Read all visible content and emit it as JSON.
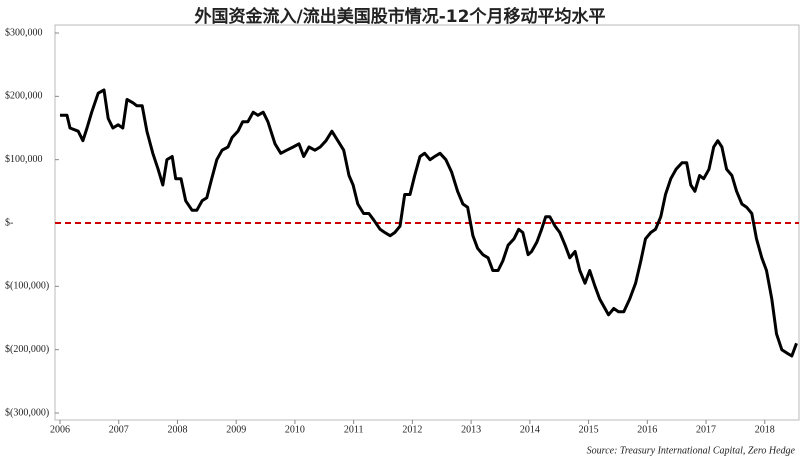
{
  "chart_data": {
    "type": "line",
    "title": "外国资金流入/流出美国股市情况-12个月移动平均水平",
    "source": "Source: Treasury International Capital, Zero Hedge",
    "xlim": [
      2006,
      2018.6
    ],
    "xticks": [
      2006,
      2007,
      2008,
      2009,
      2010,
      2011,
      2012,
      2013,
      2014,
      2015,
      2016,
      2017,
      2018
    ],
    "ylim": [
      -300000,
      300000
    ],
    "yticks": [
      {
        "value": 300000,
        "label": "$300,000"
      },
      {
        "value": 200000,
        "label": "$200,000"
      },
      {
        "value": 100000,
        "label": "$100,000"
      },
      {
        "value": 0,
        "label": "$-"
      },
      {
        "value": -100000,
        "label": "$(100,000)"
      },
      {
        "value": -200000,
        "label": "$(200,000)"
      },
      {
        "value": -300000,
        "label": "$(300,000)"
      }
    ],
    "zero_line_color": "#cc0000",
    "series": [
      {
        "color": "#000000",
        "x": [
          2006.0,
          2006.12,
          2006.17,
          2006.31,
          2006.39,
          2006.46,
          2006.54,
          2006.65,
          2006.75,
          2006.82,
          2006.9,
          2006.99,
          2007.07,
          2007.14,
          2007.24,
          2007.31,
          2007.4,
          2007.48,
          2007.58,
          2007.67,
          2007.75,
          2007.82,
          2007.91,
          2007.97,
          2008.06,
          2008.14,
          2008.25,
          2008.33,
          2008.42,
          2008.5,
          2008.57,
          2008.67,
          2008.76,
          2008.86,
          2008.93,
          2009.03,
          2009.11,
          2009.2,
          2009.29,
          2009.37,
          2009.46,
          2009.54,
          2009.66,
          2009.76,
          2009.86,
          2009.97,
          2010.07,
          2010.15,
          2010.24,
          2010.34,
          2010.43,
          2010.53,
          2010.63,
          2010.73,
          2010.83,
          2010.92,
          2010.99,
          2011.07,
          2011.17,
          2011.26,
          2011.34,
          2011.45,
          2011.53,
          2011.62,
          2011.7,
          2011.79,
          2011.87,
          2011.96,
          2012.04,
          2012.13,
          2012.21,
          2012.3,
          2012.38,
          2012.47,
          2012.57,
          2012.67,
          2012.77,
          2012.86,
          2012.94,
          2013.03,
          2013.11,
          2013.2,
          2013.29,
          2013.37,
          2013.46,
          2013.54,
          2013.63,
          2013.73,
          2013.81,
          2013.88,
          2013.97,
          2014.03,
          2014.12,
          2014.2,
          2014.27,
          2014.34,
          2014.43,
          2014.51,
          2014.6,
          2014.68,
          2014.77,
          2014.85,
          2014.94,
          2015.02,
          2015.11,
          2015.19,
          2015.28,
          2015.34,
          2015.43,
          2015.51,
          2015.6,
          2015.7,
          2015.8,
          2015.89,
          2015.97,
          2016.06,
          2016.14,
          2016.23,
          2016.31,
          2016.4,
          2016.49,
          2016.59,
          2016.67,
          2016.74,
          2016.81,
          2016.89,
          2016.96,
          2017.05,
          2017.13,
          2017.2,
          2017.27,
          2017.35,
          2017.44,
          2017.52,
          2017.61,
          2017.69,
          2017.78,
          2017.86,
          2017.95,
          2018.03,
          2018.12,
          2018.2,
          2018.29,
          2018.37,
          2018.46,
          2018.54
        ],
        "values": [
          170000,
          170000,
          150000,
          145000,
          130000,
          150000,
          175000,
          205000,
          210000,
          165000,
          150000,
          155000,
          150000,
          195000,
          190000,
          185000,
          185000,
          145000,
          110000,
          85000,
          60000,
          100000,
          105000,
          70000,
          70000,
          35000,
          20000,
          20000,
          35000,
          40000,
          65000,
          100000,
          115000,
          120000,
          135000,
          145000,
          160000,
          160000,
          175000,
          170000,
          175000,
          160000,
          125000,
          110000,
          115000,
          120000,
          125000,
          105000,
          120000,
          115000,
          120000,
          130000,
          145000,
          130000,
          115000,
          75000,
          60000,
          30000,
          15000,
          15000,
          5000,
          -10000,
          -15000,
          -20000,
          -15000,
          -5000,
          45000,
          45000,
          75000,
          105000,
          110000,
          100000,
          105000,
          110000,
          100000,
          80000,
          50000,
          30000,
          25000,
          -20000,
          -40000,
          -50000,
          -55000,
          -75000,
          -75000,
          -60000,
          -35000,
          -25000,
          -10000,
          -15000,
          -50000,
          -45000,
          -30000,
          -10000,
          10000,
          10000,
          -5000,
          -15000,
          -35000,
          -55000,
          -45000,
          -75000,
          -95000,
          -75000,
          -100000,
          -120000,
          -135000,
          -145000,
          -135000,
          -140000,
          -140000,
          -120000,
          -95000,
          -60000,
          -25000,
          -15000,
          -10000,
          10000,
          45000,
          70000,
          85000,
          95000,
          95000,
          60000,
          50000,
          75000,
          70000,
          85000,
          120000,
          130000,
          120000,
          85000,
          75000,
          50000,
          30000,
          25000,
          15000,
          -25000,
          -55000,
          -75000,
          -120000,
          -175000,
          -200000,
          -205000,
          -210000,
          -190000
        ]
      }
    ]
  }
}
